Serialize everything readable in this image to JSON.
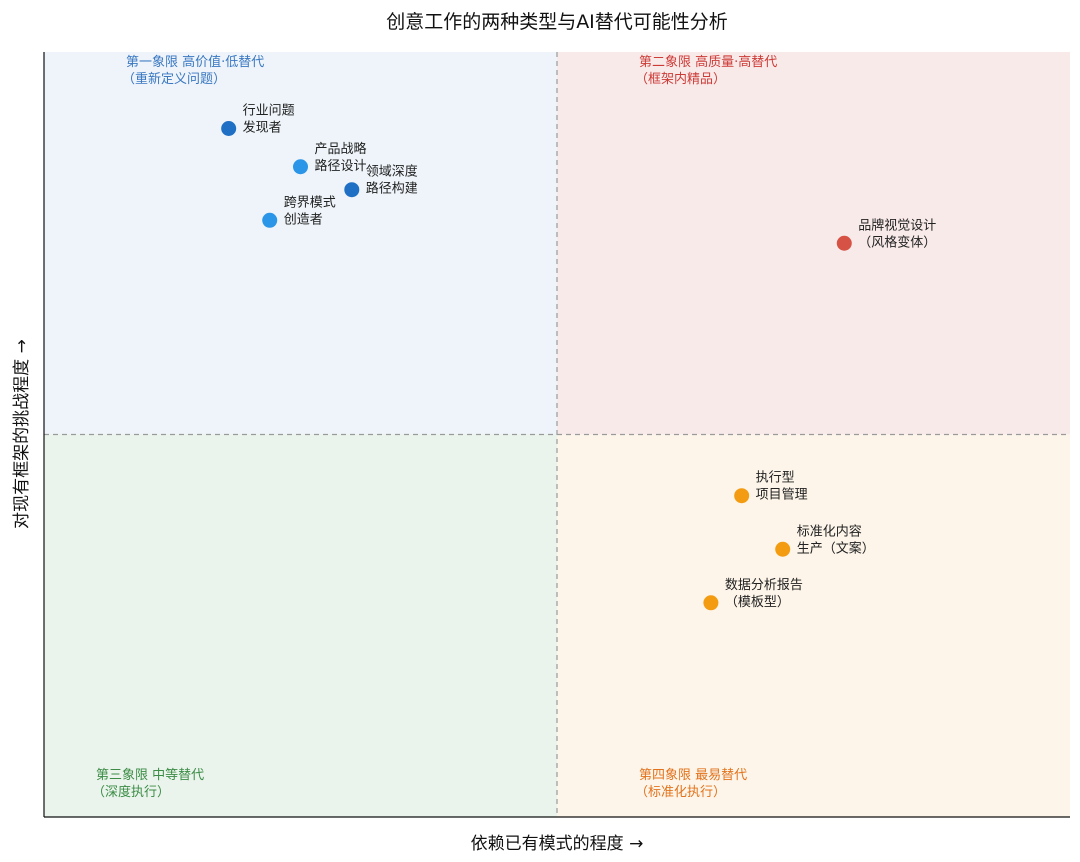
{
  "chart_data": {
    "type": "scatter",
    "title": "创意工作的两种类型与AI替代可能性分析",
    "xlabel": "依赖已有模式的程度 →",
    "ylabel": "对现有框架的挑战程度 →",
    "xlim": [
      0,
      10
    ],
    "ylim": [
      0,
      10
    ],
    "grid": false,
    "dividers": {
      "x": 5,
      "y": 5
    },
    "quadrants": [
      {
        "id": "q1",
        "position": "top-left",
        "title": "第一象限  高价值·低替代",
        "subtitle": "（重新定义问题）",
        "fill": "#eef4f9",
        "text_color": "#3a78c2"
      },
      {
        "id": "q2",
        "position": "top-right",
        "title": "第二象限  高质量·高替代",
        "subtitle": "（框架内精品）",
        "fill": "#f9eaea",
        "text_color": "#cc3b36"
      },
      {
        "id": "q3",
        "position": "bottom-left",
        "title": "第三象限  中等替代",
        "subtitle": "（深度执行）",
        "fill": "#eaf4ec",
        "text_color": "#3c8c46"
      },
      {
        "id": "q4",
        "position": "bottom-right",
        "title": "第四象限  最易替代",
        "subtitle": "（标准化执行）",
        "fill": "#fdf5ea",
        "text_color": "#e2731c"
      }
    ],
    "points": [
      {
        "x": 1.8,
        "y": 9.0,
        "label": [
          "行业问题",
          "发现者"
        ],
        "color": "#1f6fc4"
      },
      {
        "x": 2.5,
        "y": 8.5,
        "label": [
          "产品战略",
          "路径设计"
        ],
        "color": "#2b95e8"
      },
      {
        "x": 3.0,
        "y": 8.2,
        "label": [
          "领域深度",
          "路径构建"
        ],
        "color": "#1f6fc4"
      },
      {
        "x": 2.2,
        "y": 7.8,
        "label": [
          "跨界模式",
          "创造者"
        ],
        "color": "#2b95e8"
      },
      {
        "x": 7.8,
        "y": 7.5,
        "label": [
          "品牌视觉设计",
          "（风格变体）"
        ],
        "color": "#d65244"
      },
      {
        "x": 6.8,
        "y": 4.2,
        "label": [
          "执行型",
          "项目管理"
        ],
        "color": "#f39c12"
      },
      {
        "x": 7.2,
        "y": 3.5,
        "label": [
          "标准化内容",
          "生产（文案）"
        ],
        "color": "#f39c12"
      },
      {
        "x": 6.5,
        "y": 2.8,
        "label": [
          "数据分析报告",
          "（模板型）"
        ],
        "color": "#f39c12"
      }
    ]
  }
}
